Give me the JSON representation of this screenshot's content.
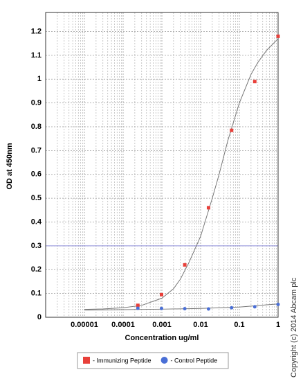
{
  "chart_data": {
    "type": "scatter",
    "x_label": "Concentration ug/ml",
    "y_label": "OD at 450nm",
    "copyright": "Copyright (c) 2014 Abcam plc",
    "x_log": true,
    "grid": true,
    "xlim": [
      1e-06,
      1
    ],
    "ylim": [
      0,
      1.28
    ],
    "xticks": [
      1e-05,
      0.0001,
      0.001,
      0.01,
      0.1,
      1
    ],
    "xminor": [
      2e-06,
      3e-06,
      4e-06,
      5e-06,
      6e-06,
      7e-06,
      8e-06,
      9e-06,
      2e-05,
      3e-05,
      4e-05,
      5e-05,
      6e-05,
      7e-05,
      8e-05,
      9e-05,
      0.0002,
      0.0003,
      0.0004,
      0.0005,
      0.0006,
      0.0007,
      0.0008,
      0.0009,
      0.002,
      0.003,
      0.004,
      0.005,
      0.006,
      0.007,
      0.008,
      0.009,
      0.02,
      0.03,
      0.04,
      0.05,
      0.06,
      0.07,
      0.08,
      0.09,
      0.2,
      0.3,
      0.4,
      0.5,
      0.6,
      0.7,
      0.8,
      0.9
    ],
    "yticks": [
      0,
      0.1,
      0.2,
      0.3,
      0.4,
      0.5,
      0.6,
      0.7,
      0.8,
      0.9,
      1,
      1.1,
      1.2
    ],
    "reference_line": {
      "value": 0.3,
      "color": "#8a8ad8"
    },
    "series": [
      {
        "name": "- Immunizing Peptide",
        "color": "#e8403a",
        "marker": "square",
        "x": [
          0.00024,
          0.00098,
          0.0039,
          0.016,
          0.063,
          0.25,
          1
        ],
        "values": [
          0.05,
          0.095,
          0.22,
          0.46,
          0.785,
          0.99,
          1.18
        ]
      },
      {
        "name": "- Control Peptide",
        "color": "#4a6fd6",
        "marker": "circle",
        "x": [
          0.00024,
          0.00098,
          0.0039,
          0.016,
          0.063,
          0.25,
          1
        ],
        "values": [
          0.038,
          0.037,
          0.036,
          0.035,
          0.04,
          0.044,
          0.054
        ]
      }
    ],
    "curves": [
      {
        "color": "#777777",
        "x": [
          1e-05,
          3e-05,
          0.0001,
          0.0003,
          0.001,
          0.002,
          0.003,
          0.005,
          0.01,
          0.02,
          0.03,
          0.05,
          0.1,
          0.2,
          0.3,
          0.5,
          1
        ],
        "values": [
          0.033,
          0.035,
          0.04,
          0.05,
          0.08,
          0.12,
          0.16,
          0.23,
          0.34,
          0.5,
          0.6,
          0.74,
          0.9,
          1.02,
          1.07,
          1.12,
          1.17
        ]
      },
      {
        "color": "#777777",
        "x": [
          1e-05,
          0.0001,
          0.001,
          0.01,
          0.1,
          1
        ],
        "values": [
          0.03,
          0.032,
          0.034,
          0.037,
          0.043,
          0.056
        ]
      }
    ]
  }
}
